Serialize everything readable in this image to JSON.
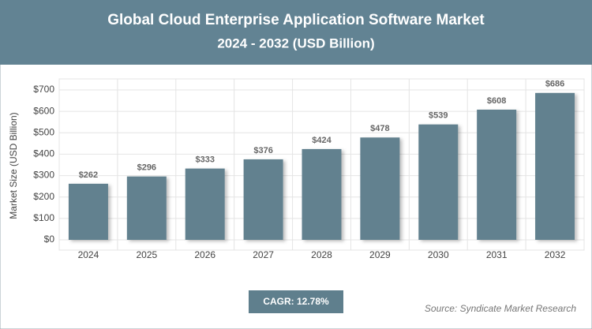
{
  "chart_data": {
    "type": "bar",
    "title": "Global Cloud Enterprise Application Software Market",
    "subtitle": "2024 - 2032 (USD Billion)",
    "y_label": "Market Size (USD Billion)",
    "categories": [
      "2024",
      "2025",
      "2026",
      "2027",
      "2028",
      "2029",
      "2030",
      "2031",
      "2032"
    ],
    "values": [
      262,
      296,
      333,
      376,
      424,
      478,
      539,
      608,
      686
    ],
    "value_labels": [
      "$262",
      "$296",
      "$333",
      "$376",
      "$424",
      "$478",
      "$539",
      "$608",
      "$686"
    ],
    "color": "#62818f",
    "ylim": [
      0,
      700
    ],
    "yticks": [
      {
        "value": 0,
        "label": "$0"
      },
      {
        "value": 100,
        "label": "$100"
      },
      {
        "value": 200,
        "label": "$200"
      },
      {
        "value": 300,
        "label": "$300"
      },
      {
        "value": 400,
        "label": "$400"
      },
      {
        "value": 500,
        "label": "$500"
      },
      {
        "value": 600,
        "label": "$600"
      },
      {
        "value": 700,
        "label": "$700"
      }
    ],
    "grid": true,
    "cagr": "CAGR: 12.78%",
    "source": "Source: Syndicate Market Research"
  }
}
